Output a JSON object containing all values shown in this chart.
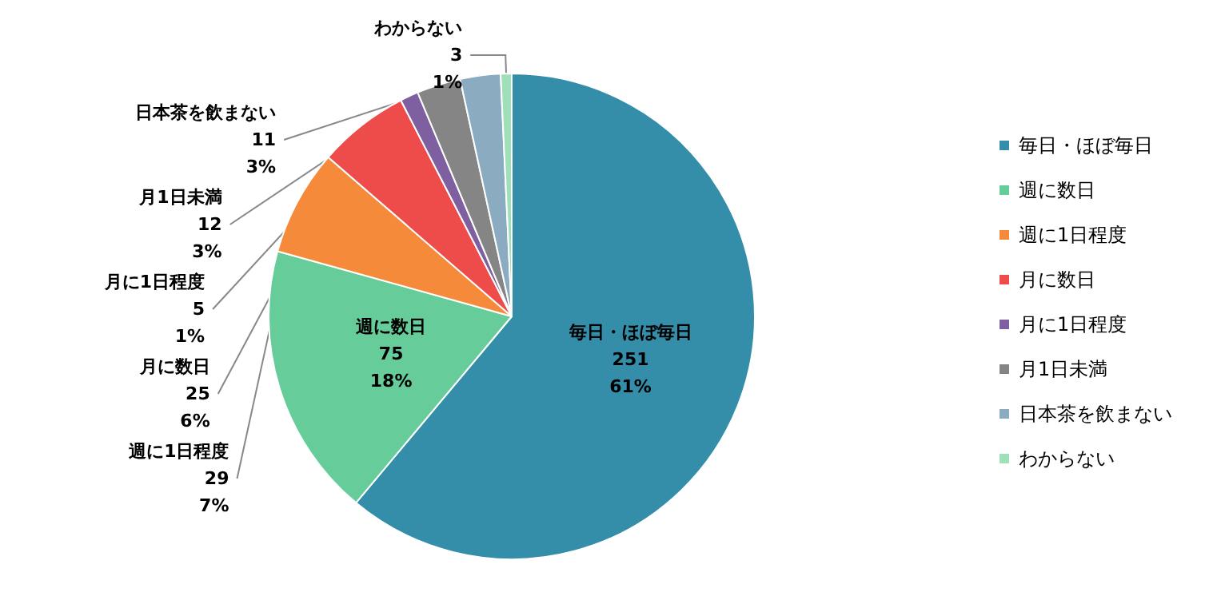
{
  "chart_data": {
    "type": "pie",
    "categories": [
      "毎日・ほぼ毎日",
      "週に数日",
      "週に1日程度",
      "月に数日",
      "月に1日程度",
      "月1日未満",
      "日本茶を飲まない",
      "わからない"
    ],
    "values": [
      251,
      75,
      29,
      25,
      5,
      12,
      11,
      3
    ],
    "value_labels": [
      "251\n61%",
      "75\n18%",
      "29\n7%",
      "25\n6%",
      "5\n1%",
      "12\n3%",
      "11\n3%",
      "3\n1%"
    ],
    "colors": [
      "#358ea9",
      "#66cc99",
      "#f58b3a",
      "#ee4b4b",
      "#7e5fa0",
      "#858585",
      "#8aabc0",
      "#a0e0b8"
    ],
    "legend": "right"
  }
}
